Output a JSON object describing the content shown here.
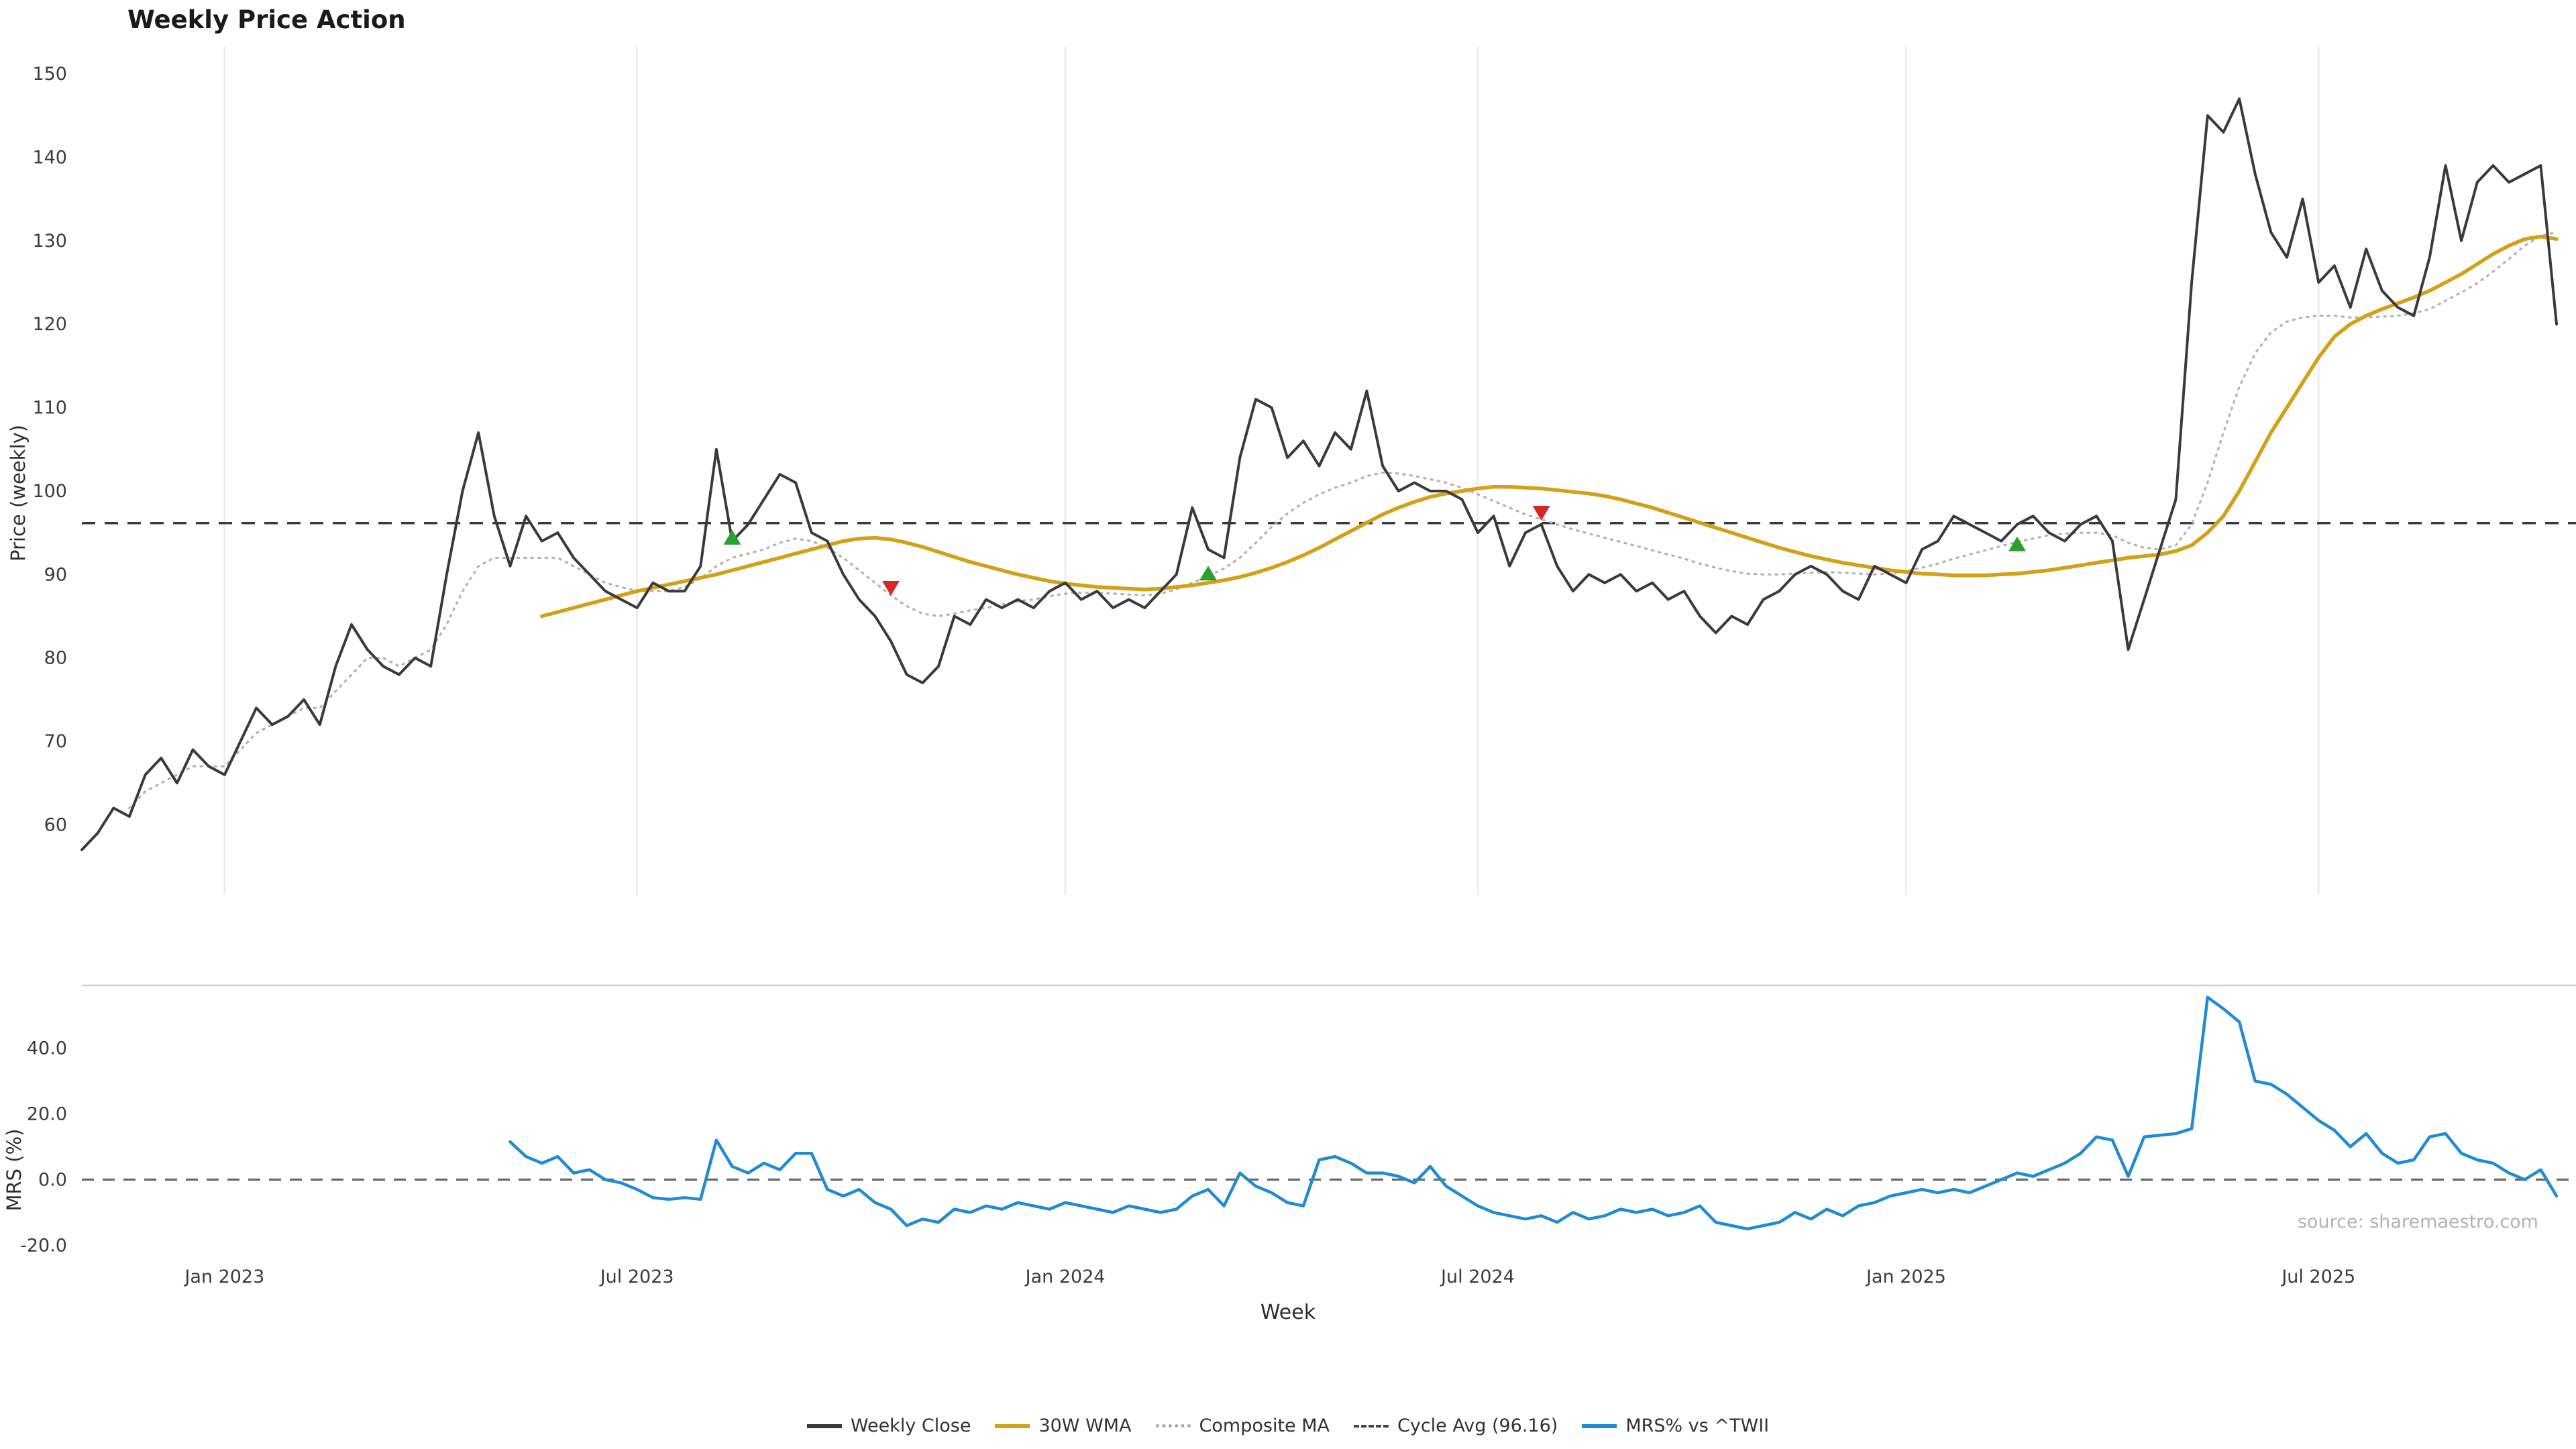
{
  "title": "Weekly Price Action",
  "source_note": "source: sharemaestro.com",
  "legend": [
    {
      "label": "Weekly Close",
      "style": "solid",
      "color": "#3a3a3a"
    },
    {
      "label": "30W WMA",
      "style": "solid",
      "color": "#d4a017"
    },
    {
      "label": "Composite MA",
      "style": "dotted",
      "color": "#aaaaaa"
    },
    {
      "label": "Cycle Avg (96.16)",
      "style": "dashed",
      "color": "#444444"
    },
    {
      "label": "MRS% vs ^TWII",
      "style": "solid",
      "color": "#1e8bd4"
    }
  ],
  "chart_data": {
    "type": "line",
    "title": "Weekly Price Action",
    "x_label": "Week",
    "weeks_total": 157,
    "x_ticks": [
      {
        "week": 9,
        "label": "Jan 2023"
      },
      {
        "week": 35,
        "label": "Jul 2023"
      },
      {
        "week": 62,
        "label": "Jan 2024"
      },
      {
        "week": 88,
        "label": "Jul 2024"
      },
      {
        "week": 115,
        "label": "Jan 2025"
      },
      {
        "week": 141,
        "label": "Jul 2025"
      }
    ],
    "cycle_avg": 96.16,
    "grid": "vertical-only",
    "legend_position": "bottom-center",
    "panels": [
      {
        "y_label": "Price (weekly)",
        "y_ticks": [
          60,
          70,
          80,
          90,
          100,
          110,
          120,
          130,
          140,
          150
        ],
        "y_range": [
          51,
          153
        ],
        "series": [
          {
            "name": "Weekly Close",
            "color": "#3a3a3a",
            "dash": "solid",
            "start_week": 0,
            "values": [
              57,
              59,
              62,
              61,
              66,
              68,
              65,
              69,
              67,
              66,
              70,
              74,
              72,
              73,
              75,
              72,
              79,
              84,
              81,
              79,
              78,
              80,
              79,
              90,
              100,
              107,
              97,
              91,
              97,
              94,
              95,
              92,
              90,
              88,
              87,
              86,
              89,
              88,
              88,
              91,
              105,
              94,
              96,
              99,
              102,
              101,
              95,
              94,
              90,
              87,
              85,
              82,
              78,
              77,
              79,
              85,
              84,
              87,
              86,
              87,
              86,
              88,
              89,
              87,
              88,
              86,
              87,
              86,
              88,
              90,
              98,
              93,
              92,
              104,
              111,
              110,
              104,
              106,
              103,
              107,
              105,
              112,
              103,
              100,
              101,
              100,
              100,
              99,
              95,
              97,
              91,
              95,
              96,
              91,
              88,
              90,
              89,
              90,
              88,
              89,
              87,
              88,
              85,
              83,
              85,
              84,
              87,
              88,
              90,
              91,
              90,
              88,
              87,
              91,
              90,
              89,
              93,
              94,
              97,
              96,
              95,
              94,
              96,
              97,
              95,
              94,
              96,
              97,
              94,
              81,
              87,
              93,
              99,
              125,
              145,
              143,
              147,
              138,
              131,
              128,
              135,
              125,
              127,
              122,
              129,
              124,
              122,
              121,
              128,
              139,
              130,
              137,
              139,
              137,
              138,
              139,
              120
            ]
          },
          {
            "name": "30W WMA",
            "color": "#d4a017",
            "dash": "solid",
            "start_week": 29,
            "values": [
              85,
              85.5,
              86,
              86.5,
              87,
              87.5,
              88,
              88.4,
              88.8,
              89.2,
              89.6,
              90,
              90.5,
              91,
              91.5,
              92,
              92.5,
              93,
              93.5,
              94,
              94.3,
              94.4,
              94.2,
              93.8,
              93.3,
              92.7,
              92.1,
              91.5,
              91,
              90.5,
              90,
              89.6,
              89.2,
              88.9,
              88.7,
              88.5,
              88.4,
              88.3,
              88.2,
              88.3,
              88.5,
              88.7,
              89,
              89.3,
              89.7,
              90.2,
              90.8,
              91.5,
              92.3,
              93.2,
              94.2,
              95.2,
              96.2,
              97.2,
              98,
              98.7,
              99.3,
              99.7,
              100,
              100.3,
              100.5,
              100.5,
              100.4,
              100.3,
              100.1,
              99.9,
              99.7,
              99.4,
              99,
              98.5,
              98,
              97.4,
              96.8,
              96.2,
              95.6,
              95,
              94.4,
              93.8,
              93.2,
              92.7,
              92.2,
              91.8,
              91.4,
              91.1,
              90.8,
              90.5,
              90.3,
              90.1,
              90,
              89.9,
              89.9,
              89.9,
              90,
              90.1,
              90.3,
              90.5,
              90.8,
              91.1,
              91.4,
              91.7,
              92,
              92.2,
              92.4,
              92.8,
              93.5,
              95,
              97,
              100,
              103.5,
              107,
              110,
              113,
              116,
              118.5,
              120,
              121,
              121.8,
              122.5,
              123.2,
              124,
              125,
              126,
              127.2,
              128.4,
              129.4,
              130.2,
              130.5,
              130.2
            ]
          },
          {
            "name": "Composite MA",
            "color": "#b3b3b3",
            "dash": "dotted",
            "start_week": 3,
            "values": [
              62,
              64,
              65,
              66,
              67,
              67,
              67,
              69,
              71,
              72,
              73,
              74,
              74,
              76,
              78,
              80,
              80,
              79,
              80,
              81,
              84,
              88,
              91,
              92,
              92,
              92,
              92,
              92,
              91,
              90,
              89,
              88.5,
              88,
              88,
              88,
              88.5,
              89.5,
              91,
              92,
              92.5,
              93,
              93.8,
              94.3,
              94,
              93.2,
              92,
              90.5,
              89,
              87.5,
              86.2,
              85.3,
              85,
              85.3,
              85.7,
              86,
              86.4,
              86.8,
              87,
              87.4,
              87.7,
              87.8,
              87.8,
              87.7,
              87.6,
              87.5,
              87.7,
              88.2,
              89,
              89.8,
              90.7,
              92,
              93.8,
              95.7,
              97.3,
              98.6,
              99.6,
              100.4,
              101,
              101.8,
              102.2,
              102.1,
              101.8,
              101.4,
              101,
              100.4,
              99.6,
              98.8,
              98,
              97.2,
              96.6,
              96,
              95.4,
              94.9,
              94.4,
              93.9,
              93.4,
              92.9,
              92.4,
              91.9,
              91.3,
              90.8,
              90.4,
              90.1,
              90,
              90,
              90.1,
              90.2,
              90.3,
              90.2,
              90.1,
              90,
              90.1,
              90.4,
              90.8,
              91.3,
              91.9,
              92.4,
              92.9,
              93.4,
              93.9,
              94.3,
              94.7,
              94.9,
              95,
              95,
              94.7,
              93.8,
              93.2,
              93,
              93.5,
              96,
              101,
              107,
              112.5,
              116.5,
              119,
              120.3,
              120.8,
              121,
              121,
              120.8,
              120.8,
              120.9,
              121,
              121.3,
              121.8,
              122.8,
              123.8,
              124.9,
              126.3,
              127.8,
              129.4,
              130.6,
              131
            ]
          }
        ],
        "signals": {
          "buy_color": "#2ca02c",
          "sell_color": "#d62728",
          "buy": [
            {
              "week": 41,
              "price": 94.3
            },
            {
              "week": 71,
              "price": 90
            },
            {
              "week": 122,
              "price": 93.5
            }
          ],
          "sell": [
            {
              "week": 51,
              "price": 88.5
            },
            {
              "week": 92,
              "price": 97.5
            }
          ]
        }
      },
      {
        "y_label": "MRS (%)",
        "y_ticks": [
          -20,
          0,
          20,
          40
        ],
        "y_tick_labels": [
          "-20.0",
          "0.0",
          "20.0",
          "40.0"
        ],
        "y_range": [
          -23,
          59
        ],
        "zero_line": 0,
        "series": [
          {
            "name": "MRS% vs ^TWII",
            "color": "#1e8bd4",
            "dash": "solid",
            "start_week": 27,
            "values": [
              11.5,
              7,
              5,
              7,
              2,
              3,
              0,
              -1,
              -3,
              -5.5,
              -6,
              -5.5,
              -6,
              12,
              4,
              2,
              5,
              3,
              8,
              8,
              -3,
              -5,
              -3,
              -7,
              -9,
              -14,
              -12,
              -13,
              -9,
              -10,
              -8,
              -9,
              -7,
              -8,
              -9,
              -7,
              -8,
              -9,
              -10,
              -8,
              -9,
              -10,
              -9,
              -5,
              -3,
              -8,
              2,
              -2,
              -4,
              -7,
              -8,
              6,
              7,
              5,
              2,
              2,
              1,
              -1,
              4,
              -2,
              -5,
              -8,
              -10,
              -11,
              -12,
              -11,
              -13,
              -10,
              -12,
              -11,
              -9,
              -10,
              -9,
              -11,
              -10,
              -8,
              -13,
              -14,
              -15,
              -14,
              -13,
              -10,
              -12,
              -9,
              -11,
              -8,
              -7,
              -5,
              -4,
              -3,
              -4,
              -3,
              -4,
              -2,
              0,
              2,
              1,
              3,
              5,
              8,
              13,
              12,
              1,
              13,
              13.5,
              14,
              15.5,
              55.5,
              52,
              48,
              30,
              29,
              26,
              22,
              18,
              15,
              10,
              14,
              8,
              5,
              6,
              13,
              14,
              8,
              6,
              5,
              2,
              0,
              3,
              -5
            ]
          }
        ]
      }
    ]
  }
}
